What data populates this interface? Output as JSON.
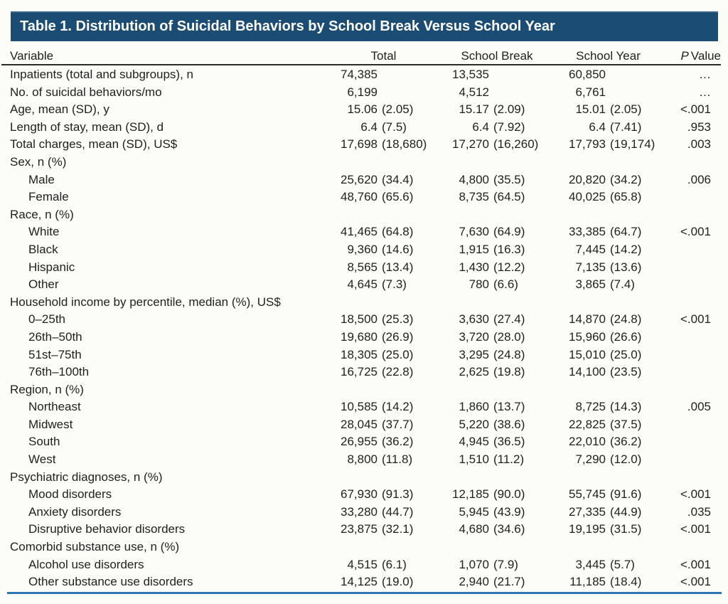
{
  "colors": {
    "title_bar": "#1b4c74",
    "bottom_rule": "#2e74b2",
    "header_rule": "#2b2b2b",
    "text": "#1f1f1f",
    "page_bg": "#fcfcf8"
  },
  "table": {
    "title": "Table 1. Distribution of Suicidal Behaviors by School Break Versus School Year",
    "header": {
      "variable": "Variable",
      "total": "Total",
      "school_break": "School Break",
      "school_year": "School Year",
      "p_italic": "P",
      "p_rest": "Value"
    },
    "rows": [
      {
        "label": "Inpatients (total and subgroups), n",
        "indent": 0,
        "cells": [
          [
            "74,385",
            ""
          ],
          [
            "13,535",
            ""
          ],
          [
            "60,850",
            ""
          ]
        ],
        "p": "…"
      },
      {
        "label": "No. of suicidal behaviors/mo",
        "indent": 0,
        "cells": [
          [
            "6,199",
            ""
          ],
          [
            "4,512",
            ""
          ],
          [
            "6,761",
            ""
          ]
        ],
        "p": "…"
      },
      {
        "label": "Age, mean (SD), y",
        "indent": 0,
        "cells": [
          [
            "15.06",
            "(2.05)"
          ],
          [
            "15.17",
            "(2.09)"
          ],
          [
            "15.01",
            "(2.05)"
          ]
        ],
        "p": "<.001"
      },
      {
        "label": "Length of stay, mean (SD), d",
        "indent": 0,
        "cells": [
          [
            "6.4",
            "(7.5)"
          ],
          [
            "6.4",
            "(7.92)"
          ],
          [
            "6.4",
            "(7.41)"
          ]
        ],
        "p": ".953"
      },
      {
        "label": "Total charges, mean (SD), US$",
        "indent": 0,
        "cells": [
          [
            "17,698",
            "(18,680)"
          ],
          [
            "17,270",
            "(16,260)"
          ],
          [
            "17,793",
            "(19,174)"
          ]
        ],
        "p": ".003"
      },
      {
        "label": "Sex, n (%)",
        "indent": 0,
        "cells": null,
        "p": ""
      },
      {
        "label": "Male",
        "indent": 1,
        "cells": [
          [
            "25,620",
            "(34.4)"
          ],
          [
            "4,800",
            "(35.5)"
          ],
          [
            "20,820",
            "(34.2)"
          ]
        ],
        "p": ".006"
      },
      {
        "label": "Female",
        "indent": 1,
        "cells": [
          [
            "48,760",
            "(65.6)"
          ],
          [
            "8,735",
            "(64.5)"
          ],
          [
            "40,025",
            "(65.8)"
          ]
        ],
        "p": ""
      },
      {
        "label": "Race, n (%)",
        "indent": 0,
        "cells": null,
        "p": ""
      },
      {
        "label": "White",
        "indent": 1,
        "cells": [
          [
            "41,465",
            "(64.8)"
          ],
          [
            "7,630",
            "(64.9)"
          ],
          [
            "33,385",
            "(64.7)"
          ]
        ],
        "p": "<.001"
      },
      {
        "label": "Black",
        "indent": 1,
        "cells": [
          [
            "9,360",
            "(14.6)"
          ],
          [
            "1,915",
            "(16.3)"
          ],
          [
            "7,445",
            "(14.2)"
          ]
        ],
        "p": ""
      },
      {
        "label": "Hispanic",
        "indent": 1,
        "cells": [
          [
            "8,565",
            "(13.4)"
          ],
          [
            "1,430",
            "(12.2)"
          ],
          [
            "7,135",
            "(13.6)"
          ]
        ],
        "p": ""
      },
      {
        "label": "Other",
        "indent": 1,
        "cells": [
          [
            "4,645",
            "(7.3)"
          ],
          [
            "780",
            "(6.6)"
          ],
          [
            "3,865",
            "(7.4)"
          ]
        ],
        "p": ""
      },
      {
        "label": "Household income by percentile, median (%), US$",
        "indent": 0,
        "cells": null,
        "p": ""
      },
      {
        "label": "0–25th",
        "indent": 1,
        "cells": [
          [
            "18,500",
            "(25.3)"
          ],
          [
            "3,630",
            "(27.4)"
          ],
          [
            "14,870",
            "(24.8)"
          ]
        ],
        "p": "<.001"
      },
      {
        "label": "26th–50th",
        "indent": 1,
        "cells": [
          [
            "19,680",
            "(26.9)"
          ],
          [
            "3,720",
            "(28.0)"
          ],
          [
            "15,960",
            "(26.6)"
          ]
        ],
        "p": ""
      },
      {
        "label": "51st–75th",
        "indent": 1,
        "cells": [
          [
            "18,305",
            "(25.0)"
          ],
          [
            "3,295",
            "(24.8)"
          ],
          [
            "15,010",
            "(25.0)"
          ]
        ],
        "p": ""
      },
      {
        "label": "76th–100th",
        "indent": 1,
        "cells": [
          [
            "16,725",
            "(22.8)"
          ],
          [
            "2,625",
            "(19.8)"
          ],
          [
            "14,100",
            "(23.5)"
          ]
        ],
        "p": ""
      },
      {
        "label": "Region, n (%)",
        "indent": 0,
        "cells": null,
        "p": ""
      },
      {
        "label": "Northeast",
        "indent": 1,
        "cells": [
          [
            "10,585",
            "(14.2)"
          ],
          [
            "1,860",
            "(13.7)"
          ],
          [
            "8,725",
            "(14.3)"
          ]
        ],
        "p": ".005"
      },
      {
        "label": "Midwest",
        "indent": 1,
        "cells": [
          [
            "28,045",
            "(37.7)"
          ],
          [
            "5,220",
            "(38.6)"
          ],
          [
            "22,825",
            "(37.5)"
          ]
        ],
        "p": ""
      },
      {
        "label": "South",
        "indent": 1,
        "cells": [
          [
            "26,955",
            "(36.2)"
          ],
          [
            "4,945",
            "(36.5)"
          ],
          [
            "22,010",
            "(36.2)"
          ]
        ],
        "p": ""
      },
      {
        "label": "West",
        "indent": 1,
        "cells": [
          [
            "8,800",
            "(11.8)"
          ],
          [
            "1,510",
            "(11.2)"
          ],
          [
            "7,290",
            "(12.0)"
          ]
        ],
        "p": ""
      },
      {
        "label": "Psychiatric diagnoses, n (%)",
        "indent": 0,
        "cells": null,
        "p": ""
      },
      {
        "label": "Mood disorders",
        "indent": 1,
        "cells": [
          [
            "67,930",
            "(91.3)"
          ],
          [
            "12,185",
            "(90.0)"
          ],
          [
            "55,745",
            "(91.6)"
          ]
        ],
        "p": "<.001"
      },
      {
        "label": "Anxiety disorders",
        "indent": 1,
        "cells": [
          [
            "33,280",
            "(44.7)"
          ],
          [
            "5,945",
            "(43.9)"
          ],
          [
            "27,335",
            "(44.9)"
          ]
        ],
        "p": ".035"
      },
      {
        "label": "Disruptive behavior disorders",
        "indent": 1,
        "cells": [
          [
            "23,875",
            "(32.1)"
          ],
          [
            "4,680",
            "(34.6)"
          ],
          [
            "19,195",
            "(31.5)"
          ]
        ],
        "p": "<.001"
      },
      {
        "label": "Comorbid substance use, n (%)",
        "indent": 0,
        "cells": null,
        "p": ""
      },
      {
        "label": "Alcohol use disorders",
        "indent": 1,
        "cells": [
          [
            "4,515",
            "(6.1)"
          ],
          [
            "1,070",
            "(7.9)"
          ],
          [
            "3,445",
            "(5.7)"
          ]
        ],
        "p": "<.001"
      },
      {
        "label": "Other substance use disorders",
        "indent": 1,
        "cells": [
          [
            "14,125",
            "(19.0)"
          ],
          [
            "2,940",
            "(21.7)"
          ],
          [
            "11,185",
            "(18.4)"
          ]
        ],
        "p": "<.001"
      }
    ]
  }
}
